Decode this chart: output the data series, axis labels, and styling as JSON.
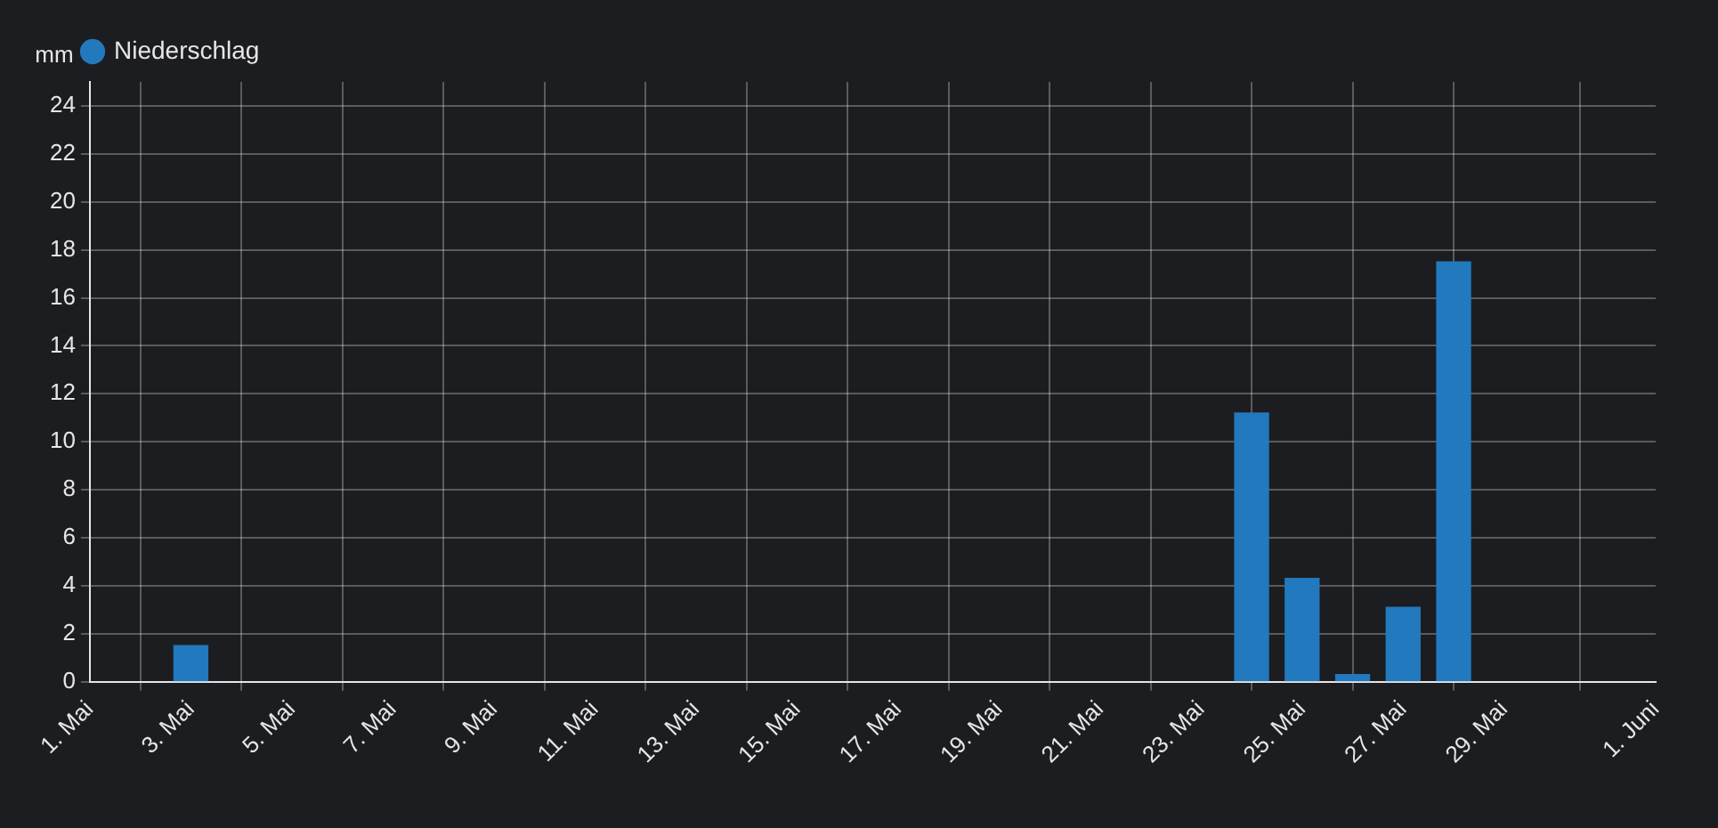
{
  "chart_data": {
    "type": "bar",
    "ylabel": "mm",
    "x": [
      "--05-03",
      "--05-24",
      "--05-25",
      "--05-26",
      "--05-27",
      "--05-28"
    ],
    "series": [
      {
        "name": "Niederschlag",
        "color": "#2379be",
        "values": [
          1.5,
          11.2,
          4.3,
          0.3,
          3.1,
          17.5
        ]
      }
    ],
    "xlim": [
      "--05-01",
      "--06-01"
    ],
    "xticks": [
      {
        "value": "--05-01",
        "label": "1. Mai"
      },
      {
        "value": "--05-03",
        "label": "3. Mai"
      },
      {
        "value": "--05-05",
        "label": "5. Mai"
      },
      {
        "value": "--05-07",
        "label": "7. Mai"
      },
      {
        "value": "--05-09",
        "label": "9. Mai"
      },
      {
        "value": "--05-11",
        "label": "11. Mai"
      },
      {
        "value": "--05-13",
        "label": "13. Mai"
      },
      {
        "value": "--05-15",
        "label": "15. Mai"
      },
      {
        "value": "--05-17",
        "label": "17. Mai"
      },
      {
        "value": "--05-19",
        "label": "19. Mai"
      },
      {
        "value": "--05-21",
        "label": "21. Mai"
      },
      {
        "value": "--05-23",
        "label": "23. Mai"
      },
      {
        "value": "--05-25",
        "label": "25. Mai"
      },
      {
        "value": "--05-27",
        "label": "27. Mai"
      },
      {
        "value": "--05-29",
        "label": "29. Mai"
      },
      {
        "value": "--06-01",
        "label": "1. Juni"
      }
    ],
    "ylim": [
      0,
      25
    ],
    "yticks": [
      0,
      2,
      4,
      6,
      8,
      10,
      12,
      14,
      16,
      18,
      20,
      22,
      24
    ],
    "grid": true,
    "legend": "top left"
  }
}
